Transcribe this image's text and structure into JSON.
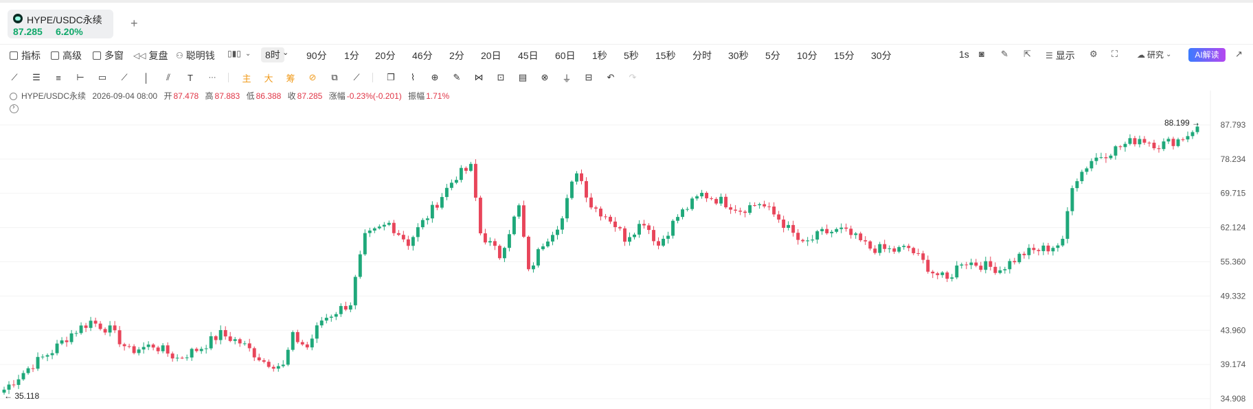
{
  "tab": {
    "symbol": "HYPE/USDC永续",
    "price": "87.285",
    "change": "6.20%",
    "add_label": "+"
  },
  "toolbar": {
    "indicator": "指标",
    "advanced": "高级",
    "multi_window": "多窗",
    "replay": "复盘",
    "smart_money": "聪明钱",
    "intervals": [
      "8时",
      "90分",
      "1分",
      "20分",
      "46分",
      "2分",
      "20日",
      "45日",
      "60日",
      "1秒",
      "5秒",
      "15秒",
      "分时",
      "30秒",
      "5分",
      "10分",
      "15分",
      "30分"
    ],
    "selected_interval": "8时",
    "right_interval": "1s",
    "display": "显示",
    "research": "研究",
    "ai": "AI解读"
  },
  "draw_tools": {
    "main": "主",
    "big": "大",
    "chips": "筹",
    "text_tool": "T",
    "more": "···"
  },
  "info_bar": {
    "symbol": "HYPE/USDC永续",
    "datetime": "2026-09-04 08:00",
    "open_label": "开",
    "open": "87.478",
    "high_label": "高",
    "high": "87.883",
    "low_label": "低",
    "low": "86.388",
    "close_label": "收",
    "close": "87.285",
    "change_label": "涨幅",
    "change": "-0.23%(-0.201)",
    "amp_label": "振幅",
    "amp": "1.71%"
  },
  "chart_data": {
    "type": "candlestick",
    "y_ticks": [
      "87.793",
      "78.234",
      "69.715",
      "62.124",
      "55.360",
      "49.332",
      "43.960",
      "39.174",
      "34.908"
    ],
    "y_range": [
      34.908,
      87.793
    ],
    "y_scale": "log",
    "high_marker": "88.199",
    "low_marker": "35.118",
    "up_color": "#1fa87a",
    "down_color": "#e8455a",
    "close_path": [
      [
        0,
        36.0
      ],
      [
        6,
        39.2
      ],
      [
        10,
        41.0
      ],
      [
        14,
        43.5
      ],
      [
        18,
        45.3
      ],
      [
        22,
        44.0
      ],
      [
        26,
        41.0
      ],
      [
        31,
        41.8
      ],
      [
        36,
        40.0
      ],
      [
        41,
        41.5
      ],
      [
        45,
        43.4
      ],
      [
        49,
        42.2
      ],
      [
        54,
        39.6
      ],
      [
        58,
        38.9
      ],
      [
        60,
        43.0
      ],
      [
        63,
        41.5
      ],
      [
        66,
        45.5
      ],
      [
        72,
        48.2
      ],
      [
        75,
        60.0
      ],
      [
        80,
        63.0
      ],
      [
        84,
        59.0
      ],
      [
        89,
        66.0
      ],
      [
        94,
        74.0
      ],
      [
        97,
        76.0
      ],
      [
        99,
        61.0
      ],
      [
        103,
        56.5
      ],
      [
        107,
        66.5
      ],
      [
        109,
        53.3
      ],
      [
        112,
        59.0
      ],
      [
        116,
        64.0
      ],
      [
        119,
        75.5
      ],
      [
        122,
        67.0
      ],
      [
        126,
        64.0
      ],
      [
        129,
        60.0
      ],
      [
        133,
        63.5
      ],
      [
        136,
        58.5
      ],
      [
        140,
        64.5
      ],
      [
        145,
        69.5
      ],
      [
        149,
        68.0
      ],
      [
        153,
        66.0
      ],
      [
        157,
        67.5
      ],
      [
        161,
        64.0
      ],
      [
        166,
        58.5
      ],
      [
        170,
        61.0
      ],
      [
        174,
        61.5
      ],
      [
        176,
        60.5
      ],
      [
        180,
        58.0
      ],
      [
        185,
        57.5
      ],
      [
        188,
        58.0
      ],
      [
        193,
        53.5
      ],
      [
        196,
        52.0
      ],
      [
        199,
        55.5
      ],
      [
        202,
        55.0
      ],
      [
        207,
        54.0
      ],
      [
        212,
        57.0
      ],
      [
        217,
        58.0
      ],
      [
        220,
        59.0
      ],
      [
        222,
        72.0
      ],
      [
        226,
        78.0
      ],
      [
        231,
        81.0
      ],
      [
        236,
        84.0
      ],
      [
        240,
        82.0
      ],
      [
        244,
        83.5
      ],
      [
        246,
        85.0
      ],
      [
        248,
        88.0
      ]
    ]
  }
}
